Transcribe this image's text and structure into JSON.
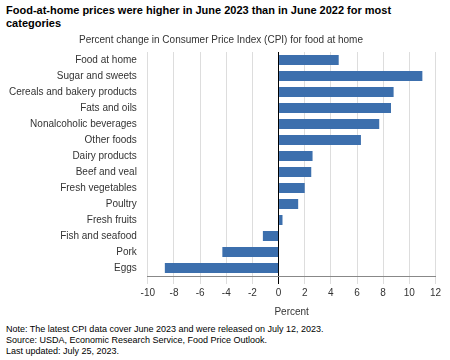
{
  "chart_data": {
    "type": "bar",
    "orientation": "horizontal",
    "title": "Food-at-home prices were higher in June 2023 than in June 2022 for most categories",
    "subtitle": "Percent change in Consumer Price Index (CPI) for food at home",
    "categories": [
      "Food at home",
      "Sugar and sweets",
      "Cereals and bakery products",
      "Fats and oils",
      "Nonalcoholic beverages",
      "Other foods",
      "Dairy products",
      "Beef and veal",
      "Fresh vegetables",
      "Poultry",
      "Fresh fruits",
      "Fish and seafood",
      "Pork",
      "Eggs"
    ],
    "values": [
      4.6,
      11.0,
      8.8,
      8.6,
      7.7,
      6.3,
      2.6,
      2.5,
      2.0,
      1.5,
      0.3,
      -1.2,
      -4.3,
      -8.7
    ],
    "color": "#3c6fad",
    "xlabel": "Percent",
    "xlim": [
      -10,
      12
    ],
    "xticks": [
      -10,
      -8,
      -6,
      -4,
      -2,
      0,
      2,
      4,
      6,
      8,
      10,
      12
    ],
    "grid": true,
    "note": "Note: The latest CPI data cover June 2023 and were released on July 12, 2023.\nSource: USDA, Economic Research Service, Food Price Outlook.\nLast updated: July 25, 2023."
  }
}
